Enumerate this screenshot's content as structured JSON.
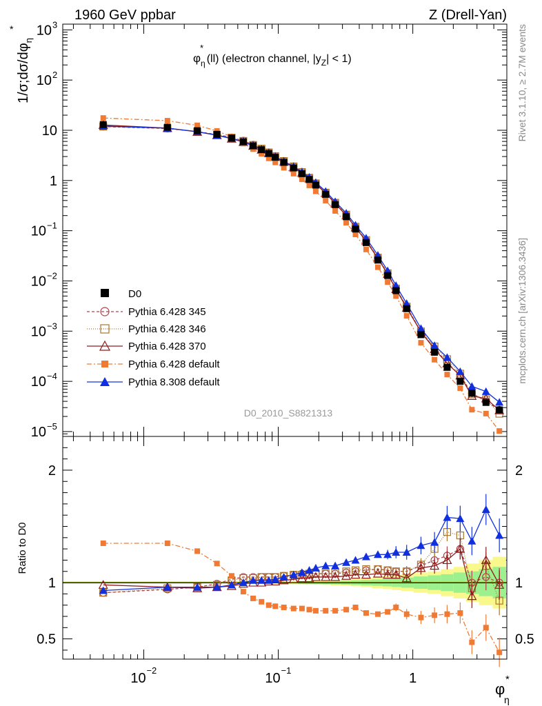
{
  "header": {
    "left": "1960 GeV ppbar",
    "right": "Z (Drell-Yan)"
  },
  "side_labels": {
    "rivet": "Rivet 3.1.10, ≥ 2.7M events",
    "mcplots": "mcplots.cern.ch [arXiv:1306.3436]"
  },
  "chart_data": [
    {
      "type": "line",
      "title_main": "φ",
      "title_sup": "*",
      "title_sub": "η",
      "title_rest": "(ll) (electron channel, |y",
      "title_sub2": "Z",
      "title_tail": "| < 1)",
      "ylabel": "1/σ;dσ/dφ",
      "ylabel_sub": "η",
      "ylabel_sup": "*",
      "xlabel": "φ",
      "xlabel_sup": "*",
      "xlabel_sub": "η",
      "x_scale": "log",
      "y_scale": "log",
      "xlim": [
        0.0025,
        5.0
      ],
      "ylim": [
        8e-06,
        1300
      ],
      "y_ticks": [
        {
          "v": 1000,
          "base": "10",
          "exp": "3"
        },
        {
          "v": 100,
          "base": "10",
          "exp": "2"
        },
        {
          "v": 10,
          "base": "10",
          "exp": ""
        },
        {
          "v": 1,
          "base": "1",
          "exp": ""
        },
        {
          "v": 0.1,
          "base": "10",
          "exp": "−1"
        },
        {
          "v": 0.01,
          "base": "10",
          "exp": "−2"
        },
        {
          "v": 0.001,
          "base": "10",
          "exp": "−3"
        },
        {
          "v": 0.0001,
          "base": "10",
          "exp": "−4"
        },
        {
          "v": 1e-05,
          "base": "10",
          "exp": "−5"
        }
      ],
      "x": [
        0.005,
        0.015,
        0.025,
        0.035,
        0.045,
        0.055,
        0.065,
        0.075,
        0.085,
        0.095,
        0.11,
        0.13,
        0.15,
        0.17,
        0.19,
        0.225,
        0.265,
        0.32,
        0.375,
        0.45,
        0.55,
        0.65,
        0.75,
        0.9,
        1.15,
        1.45,
        1.8,
        2.25,
        2.75,
        3.5,
        4.4
      ],
      "reference": {
        "name": "D0",
        "color": "#000000",
        "values": [
          13.0,
          11.5,
          9.8,
          8.3,
          7.0,
          5.9,
          4.9,
          4.1,
          3.45,
          2.9,
          2.3,
          1.78,
          1.37,
          1.05,
          0.81,
          0.53,
          0.33,
          0.19,
          0.108,
          0.058,
          0.026,
          0.0128,
          0.0064,
          0.0028,
          0.00085,
          0.00038,
          0.00019,
          0.0001,
          5.8e-05,
          3.8e-05,
          2.7e-05
        ]
      },
      "series": [
        {
          "name": "Pythia 6.428 345",
          "color": "#b0404a",
          "dash": "4,3",
          "marker": "circle-open",
          "ratio": [
            0.91,
            0.94,
            0.96,
            0.99,
            1.03,
            1.05,
            1.05,
            1.05,
            1.05,
            1.05,
            1.06,
            1.07,
            1.08,
            1.08,
            1.08,
            1.08,
            1.08,
            1.09,
            1.1,
            1.11,
            1.12,
            1.11,
            1.1,
            1.1,
            1.15,
            1.2,
            1.24,
            1.3,
            1.0,
            1.05,
            1.0
          ]
        },
        {
          "name": "Pythia 6.428 346",
          "color": "#a8762a",
          "dash": "1,2",
          "marker": "square-open",
          "ratio": [
            0.91,
            0.95,
            0.96,
            0.98,
            1.02,
            1.04,
            1.04,
            1.05,
            1.05,
            1.05,
            1.06,
            1.07,
            1.07,
            1.08,
            1.08,
            1.08,
            1.09,
            1.1,
            1.11,
            1.12,
            1.12,
            1.11,
            1.1,
            1.1,
            1.16,
            1.3,
            1.45,
            1.42,
            0.95,
            1.15,
            0.84
          ]
        },
        {
          "name": "Pythia 6.428 370",
          "color": "#8e1a1a",
          "dash": "",
          "marker": "triangle-open",
          "ratio": [
            0.98,
            0.96,
            0.95,
            0.96,
            0.97,
            0.99,
            1.0,
            1.0,
            1.01,
            1.01,
            1.02,
            1.03,
            1.04,
            1.04,
            1.05,
            1.05,
            1.05,
            1.06,
            1.07,
            1.07,
            1.08,
            1.07,
            1.07,
            1.04,
            1.13,
            1.15,
            1.2,
            1.3,
            0.88,
            1.2,
            0.98
          ]
        },
        {
          "name": "Pythia 6.428 default",
          "color": "#f07a34",
          "dash": "7,3,2,3",
          "marker": "square-filled",
          "ratio": [
            1.35,
            1.35,
            1.28,
            1.17,
            1.06,
            0.92,
            0.86,
            0.83,
            0.8,
            0.79,
            0.78,
            0.77,
            0.77,
            0.76,
            0.75,
            0.75,
            0.75,
            0.76,
            0.78,
            0.73,
            0.72,
            0.74,
            0.78,
            0.72,
            0.69,
            0.71,
            0.72,
            0.73,
            0.47,
            0.6,
            0.38
          ]
        },
        {
          "name": "Pythia 8.308 default",
          "color": "#1030e0",
          "dash": "",
          "marker": "triangle-filled",
          "ratio": [
            0.93,
            0.96,
            0.96,
            0.96,
            0.98,
            1.0,
            1.02,
            1.02,
            1.02,
            1.03,
            1.05,
            1.07,
            1.09,
            1.11,
            1.13,
            1.15,
            1.15,
            1.18,
            1.2,
            1.23,
            1.25,
            1.25,
            1.27,
            1.27,
            1.33,
            1.36,
            1.58,
            1.57,
            1.37,
            1.65,
            1.42
          ]
        }
      ],
      "legend_position": "lower-left",
      "watermark": "D0_2010_S8821313"
    },
    {
      "type": "line",
      "ylabel": "Ratio to D0",
      "ylim": [
        0.32,
        2.3
      ],
      "y_ticks": [
        {
          "v": 0.5,
          "label": "0.5"
        },
        {
          "v": 1,
          "label": "1"
        },
        {
          "v": 2,
          "label": "2"
        }
      ],
      "x_ticks": [
        {
          "v": 0.01,
          "base": "10",
          "exp": "−2"
        },
        {
          "v": 0.1,
          "base": "10",
          "exp": "−1"
        },
        {
          "v": 1,
          "base": "1",
          "exp": ""
        }
      ],
      "uncertainty_band_colors": {
        "stat": "#9cf08e",
        "total": "#f8f88c"
      },
      "stat_band": [
        0.004,
        0.004,
        0.004,
        0.004,
        0.004,
        0.004,
        0.005,
        0.005,
        0.006,
        0.006,
        0.007,
        0.008,
        0.009,
        0.01,
        0.011,
        0.013,
        0.015,
        0.018,
        0.021,
        0.024,
        0.028,
        0.033,
        0.038,
        0.045,
        0.055,
        0.065,
        0.075,
        0.09,
        0.1,
        0.12,
        0.14
      ],
      "total_band": [
        0.006,
        0.006,
        0.006,
        0.006,
        0.006,
        0.007,
        0.007,
        0.008,
        0.008,
        0.009,
        0.01,
        0.011,
        0.013,
        0.015,
        0.017,
        0.02,
        0.024,
        0.028,
        0.033,
        0.04,
        0.05,
        0.058,
        0.066,
        0.075,
        0.09,
        0.1,
        0.12,
        0.14,
        0.17,
        0.2,
        0.23
      ]
    }
  ]
}
